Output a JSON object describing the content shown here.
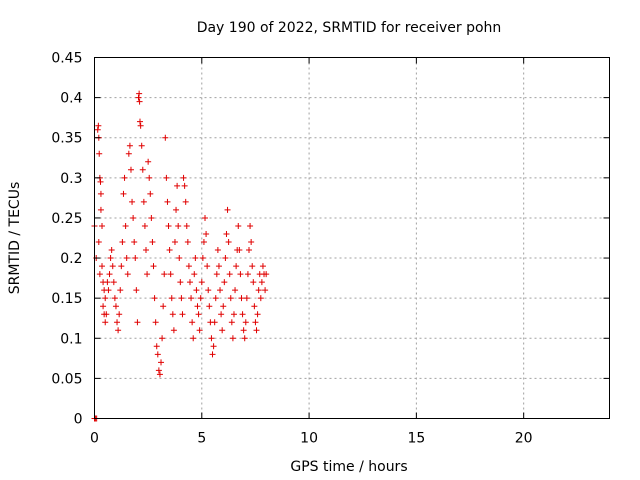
{
  "chart_data": {
    "type": "scatter",
    "title": "Day 190 of 2022, SRMTID for receiver pohn",
    "xlabel": "GPS time / hours",
    "ylabel": "SRMTID / TECUs",
    "xlim": [
      0,
      24
    ],
    "ylim": [
      0,
      0.45
    ],
    "xticks": [
      0,
      5,
      10,
      15,
      20
    ],
    "yticks": [
      0,
      0.05,
      0.1,
      0.15,
      0.2,
      0.25,
      0.3,
      0.35,
      0.4,
      0.45
    ],
    "xtick_labels": [
      "0",
      "5",
      "10",
      "15",
      "20"
    ],
    "ytick_labels": [
      "0",
      "0.05",
      "0.1",
      "0.15",
      "0.2",
      "0.25",
      "0.3",
      "0.35",
      "0.4",
      "0.45"
    ],
    "grid": true,
    "marker": "+",
    "color": "#e00000",
    "series": [
      {
        "name": "SRMTID",
        "points": [
          [
            0.0,
            0.0
          ],
          [
            0.05,
            0.0
          ],
          [
            0.1,
            0.0
          ],
          [
            0.0,
            0.24
          ],
          [
            0.08,
            0.2
          ],
          [
            0.15,
            0.36
          ],
          [
            0.18,
            0.365
          ],
          [
            0.2,
            0.35
          ],
          [
            0.22,
            0.33
          ],
          [
            0.25,
            0.3
          ],
          [
            0.28,
            0.295
          ],
          [
            0.3,
            0.28
          ],
          [
            0.2,
            0.22
          ],
          [
            0.25,
            0.18
          ],
          [
            0.3,
            0.26
          ],
          [
            0.35,
            0.24
          ],
          [
            0.4,
            0.14
          ],
          [
            0.45,
            0.13
          ],
          [
            0.5,
            0.12
          ],
          [
            0.35,
            0.19
          ],
          [
            0.4,
            0.17
          ],
          [
            0.45,
            0.16
          ],
          [
            0.5,
            0.15
          ],
          [
            0.55,
            0.13
          ],
          [
            0.6,
            0.17
          ],
          [
            0.65,
            0.16
          ],
          [
            0.7,
            0.18
          ],
          [
            0.75,
            0.2
          ],
          [
            0.8,
            0.21
          ],
          [
            0.85,
            0.19
          ],
          [
            0.9,
            0.17
          ],
          [
            0.95,
            0.15
          ],
          [
            1.0,
            0.14
          ],
          [
            1.05,
            0.12
          ],
          [
            1.1,
            0.11
          ],
          [
            1.15,
            0.13
          ],
          [
            1.2,
            0.16
          ],
          [
            1.25,
            0.19
          ],
          [
            1.3,
            0.22
          ],
          [
            1.35,
            0.28
          ],
          [
            1.4,
            0.3
          ],
          [
            1.45,
            0.24
          ],
          [
            1.5,
            0.2
          ],
          [
            1.55,
            0.18
          ],
          [
            1.6,
            0.33
          ],
          [
            1.65,
            0.34
          ],
          [
            1.7,
            0.31
          ],
          [
            1.75,
            0.27
          ],
          [
            1.8,
            0.25
          ],
          [
            1.85,
            0.22
          ],
          [
            1.9,
            0.2
          ],
          [
            1.95,
            0.16
          ],
          [
            2.0,
            0.12
          ],
          [
            2.05,
            0.4
          ],
          [
            2.08,
            0.405
          ],
          [
            2.1,
            0.395
          ],
          [
            2.12,
            0.37
          ],
          [
            2.15,
            0.365
          ],
          [
            2.2,
            0.34
          ],
          [
            2.25,
            0.31
          ],
          [
            2.3,
            0.27
          ],
          [
            2.35,
            0.24
          ],
          [
            2.4,
            0.21
          ],
          [
            2.45,
            0.18
          ],
          [
            2.5,
            0.32
          ],
          [
            2.55,
            0.3
          ],
          [
            2.6,
            0.28
          ],
          [
            2.65,
            0.25
          ],
          [
            2.7,
            0.22
          ],
          [
            2.75,
            0.19
          ],
          [
            2.8,
            0.15
          ],
          [
            2.85,
            0.12
          ],
          [
            2.9,
            0.09
          ],
          [
            2.95,
            0.08
          ],
          [
            3.0,
            0.06
          ],
          [
            3.05,
            0.055
          ],
          [
            3.1,
            0.07
          ],
          [
            3.15,
            0.1
          ],
          [
            3.2,
            0.14
          ],
          [
            3.25,
            0.18
          ],
          [
            3.3,
            0.35
          ],
          [
            3.35,
            0.3
          ],
          [
            3.4,
            0.27
          ],
          [
            3.45,
            0.24
          ],
          [
            3.5,
            0.21
          ],
          [
            3.55,
            0.18
          ],
          [
            3.6,
            0.15
          ],
          [
            3.65,
            0.13
          ],
          [
            3.7,
            0.11
          ],
          [
            3.75,
            0.22
          ],
          [
            3.8,
            0.26
          ],
          [
            3.85,
            0.29
          ],
          [
            3.9,
            0.24
          ],
          [
            3.95,
            0.2
          ],
          [
            4.0,
            0.17
          ],
          [
            4.05,
            0.15
          ],
          [
            4.1,
            0.13
          ],
          [
            4.15,
            0.3
          ],
          [
            4.2,
            0.29
          ],
          [
            4.25,
            0.27
          ],
          [
            4.3,
            0.24
          ],
          [
            4.35,
            0.22
          ],
          [
            4.4,
            0.19
          ],
          [
            4.45,
            0.17
          ],
          [
            4.5,
            0.15
          ],
          [
            4.55,
            0.12
          ],
          [
            4.6,
            0.1
          ],
          [
            4.65,
            0.18
          ],
          [
            4.7,
            0.2
          ],
          [
            4.75,
            0.16
          ],
          [
            4.8,
            0.14
          ],
          [
            4.85,
            0.13
          ],
          [
            4.9,
            0.11
          ],
          [
            4.95,
            0.15
          ],
          [
            5.0,
            0.17
          ],
          [
            5.05,
            0.2
          ],
          [
            5.1,
            0.22
          ],
          [
            5.15,
            0.25
          ],
          [
            5.2,
            0.23
          ],
          [
            5.25,
            0.19
          ],
          [
            5.3,
            0.16
          ],
          [
            5.35,
            0.14
          ],
          [
            5.4,
            0.12
          ],
          [
            5.45,
            0.1
          ],
          [
            5.5,
            0.08
          ],
          [
            5.55,
            0.09
          ],
          [
            5.6,
            0.12
          ],
          [
            5.65,
            0.15
          ],
          [
            5.7,
            0.18
          ],
          [
            5.75,
            0.21
          ],
          [
            5.8,
            0.19
          ],
          [
            5.85,
            0.16
          ],
          [
            5.9,
            0.13
          ],
          [
            5.95,
            0.11
          ],
          [
            6.0,
            0.14
          ],
          [
            6.05,
            0.17
          ],
          [
            6.1,
            0.2
          ],
          [
            6.15,
            0.23
          ],
          [
            6.2,
            0.26
          ],
          [
            6.25,
            0.22
          ],
          [
            6.3,
            0.18
          ],
          [
            6.35,
            0.15
          ],
          [
            6.4,
            0.12
          ],
          [
            6.45,
            0.1
          ],
          [
            6.5,
            0.13
          ],
          [
            6.55,
            0.16
          ],
          [
            6.6,
            0.19
          ],
          [
            6.65,
            0.21
          ],
          [
            6.7,
            0.24
          ],
          [
            6.75,
            0.21
          ],
          [
            6.8,
            0.18
          ],
          [
            6.85,
            0.15
          ],
          [
            6.9,
            0.13
          ],
          [
            6.95,
            0.11
          ],
          [
            7.0,
            0.1
          ],
          [
            7.05,
            0.12
          ],
          [
            7.1,
            0.15
          ],
          [
            7.15,
            0.18
          ],
          [
            7.2,
            0.21
          ],
          [
            7.25,
            0.24
          ],
          [
            7.3,
            0.22
          ],
          [
            7.35,
            0.19
          ],
          [
            7.4,
            0.17
          ],
          [
            7.45,
            0.14
          ],
          [
            7.5,
            0.12
          ],
          [
            7.55,
            0.11
          ],
          [
            7.6,
            0.13
          ],
          [
            7.65,
            0.16
          ],
          [
            7.7,
            0.18
          ],
          [
            7.75,
            0.15
          ],
          [
            7.8,
            0.17
          ],
          [
            7.85,
            0.19
          ],
          [
            7.9,
            0.18
          ],
          [
            7.95,
            0.16
          ],
          [
            8.0,
            0.18
          ]
        ]
      }
    ]
  }
}
